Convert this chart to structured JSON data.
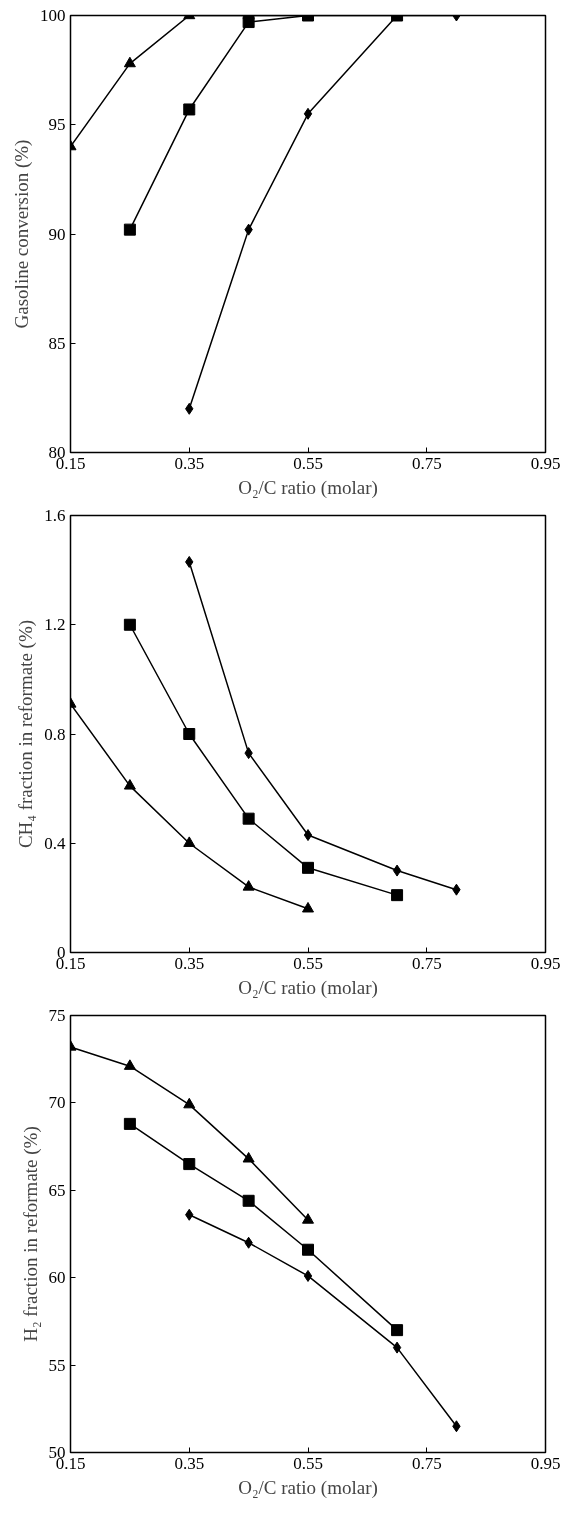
{
  "chart_data": [
    {
      "type": "line",
      "xlabel": "O₂/C ratio (molar)",
      "ylabel": "Gasoline conversion (%)",
      "xlim": [
        0.15,
        0.95
      ],
      "xticks": [
        0.15,
        0.35,
        0.55,
        0.75,
        0.95
      ],
      "ylim": [
        80,
        100
      ],
      "yticks": [
        80,
        85,
        90,
        95,
        100
      ],
      "grid": false,
      "line_style": "solid",
      "series": [
        {
          "color": "#000000",
          "marker": "triangle",
          "x": [
            0.15,
            0.25,
            0.35,
            0.45,
            0.55
          ],
          "values": [
            94,
            97.8,
            100,
            100,
            100
          ]
        },
        {
          "color": "#000000",
          "marker": "square",
          "x": [
            0.25,
            0.35,
            0.45,
            0.55,
            0.7
          ],
          "values": [
            90.2,
            95.7,
            99.7,
            100,
            100
          ]
        },
        {
          "color": "#000000",
          "marker": "diamond",
          "x": [
            0.35,
            0.45,
            0.55,
            0.7,
            0.8
          ],
          "values": [
            82,
            90.2,
            95.5,
            100,
            100
          ]
        }
      ]
    },
    {
      "type": "line",
      "xlabel": "O₂/C ratio (molar)",
      "ylabel": "CH₄ fraction in reformate (%)",
      "xlim": [
        0.15,
        0.95
      ],
      "xticks": [
        0.15,
        0.35,
        0.55,
        0.75,
        0.95
      ],
      "ylim": [
        0,
        1.6
      ],
      "yticks": [
        0,
        0.4,
        0.8,
        1.2,
        1.6
      ],
      "grid": false,
      "line_style": "solid",
      "series": [
        {
          "color": "#000000",
          "marker": "triangle",
          "x": [
            0.15,
            0.25,
            0.35,
            0.45,
            0.55
          ],
          "values": [
            0.91,
            0.61,
            0.4,
            0.24,
            0.16
          ]
        },
        {
          "color": "#000000",
          "marker": "square",
          "x": [
            0.25,
            0.35,
            0.45,
            0.55,
            0.7
          ],
          "values": [
            1.2,
            0.8,
            0.49,
            0.31,
            0.21
          ]
        },
        {
          "color": "#000000",
          "marker": "diamond",
          "x": [
            0.35,
            0.45,
            0.55,
            0.7,
            0.8
          ],
          "values": [
            1.43,
            0.73,
            0.43,
            0.3,
            0.23
          ]
        }
      ]
    },
    {
      "type": "line",
      "xlabel": "O₂/C ratio (molar)",
      "ylabel": "H₂ fraction in reformate (%)",
      "xlim": [
        0.15,
        0.95
      ],
      "xticks": [
        0.15,
        0.35,
        0.55,
        0.75,
        0.95
      ],
      "ylim": [
        50,
        75
      ],
      "yticks": [
        50,
        55,
        60,
        65,
        70,
        75
      ],
      "grid": false,
      "line_style": "solid",
      "series": [
        {
          "color": "#000000",
          "marker": "triangle",
          "x": [
            0.15,
            0.25,
            0.35,
            0.45,
            0.55
          ],
          "values": [
            73.2,
            72.1,
            69.9,
            66.8,
            63.3
          ]
        },
        {
          "color": "#000000",
          "marker": "square",
          "x": [
            0.25,
            0.35,
            0.45,
            0.55,
            0.7
          ],
          "values": [
            68.8,
            66.5,
            64.4,
            61.6,
            57.0
          ]
        },
        {
          "color": "#000000",
          "marker": "diamond",
          "x": [
            0.35,
            0.45,
            0.55,
            0.7,
            0.8
          ],
          "values": [
            63.6,
            62.0,
            60.1,
            56.0,
            51.5
          ]
        }
      ]
    }
  ]
}
